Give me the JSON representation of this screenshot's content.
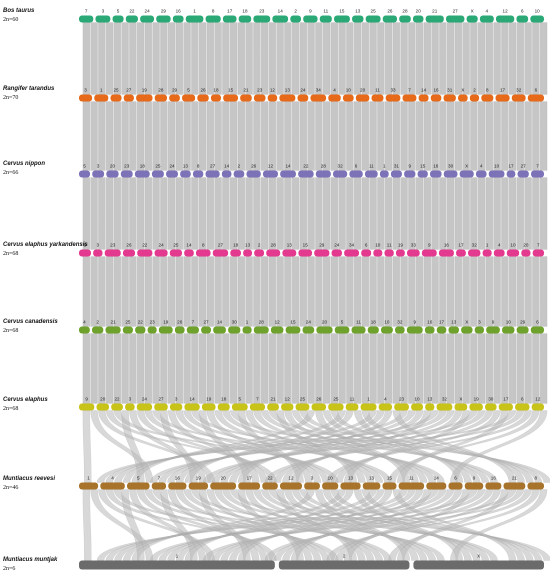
{
  "chart_data": {
    "type": "synteny",
    "band_color": "#b8b8b8",
    "species": [
      {
        "name": "Bos taurus",
        "karyotype": "2n=60",
        "color": "#2aa876",
        "chromosomes": [
          "7",
          "3",
          "5",
          "22",
          "24",
          "29",
          "16",
          "1",
          "8",
          "17",
          "18",
          "23",
          "14",
          "2",
          "9",
          "11",
          "15",
          "13",
          "25",
          "26",
          "28",
          "20",
          "21",
          "27",
          "X",
          "4",
          "12",
          "6",
          "10"
        ]
      },
      {
        "name": "Rangifer tarandus",
        "karyotype": "2n=70",
        "color": "#e66a1a",
        "chromosomes": [
          "3",
          "1",
          "25",
          "27",
          "19",
          "28",
          "29",
          "5",
          "26",
          "18",
          "15",
          "21",
          "23",
          "12",
          "13",
          "24",
          "34",
          "4",
          "10",
          "20",
          "11",
          "33",
          "7",
          "14",
          "16",
          "31",
          "X",
          "2",
          "8",
          "17",
          "32",
          "6"
        ]
      },
      {
        "name": "Cervus nippon",
        "karyotype": "2n=66",
        "color": "#7b72b8",
        "chromosomes": [
          "5",
          "3",
          "20",
          "23",
          "18",
          "25",
          "24",
          "13",
          "8",
          "27",
          "14",
          "2",
          "26",
          "12",
          "14",
          "22",
          "28",
          "32",
          "6",
          "11",
          "1",
          "31",
          "9",
          "15",
          "16",
          "30",
          "X",
          "4",
          "10",
          "17",
          "27",
          "7"
        ]
      },
      {
        "name": "Cervus elaphus yarkandensis",
        "karyotype": "2n=68",
        "color": "#e33a8f",
        "chromosomes": [
          "5",
          "3",
          "23",
          "26",
          "22",
          "24",
          "25",
          "14",
          "8",
          "27",
          "18",
          "13",
          "2",
          "28",
          "13",
          "15",
          "29",
          "24",
          "34",
          "6",
          "10",
          "11",
          "19",
          "33",
          "9",
          "16",
          "17",
          "32",
          "1",
          "4",
          "10",
          "20",
          "7"
        ]
      },
      {
        "name": "Cervus canadensis",
        "karyotype": "2n=68",
        "color": "#6ea22c",
        "chromosomes": [
          "4",
          "2",
          "21",
          "25",
          "22",
          "23",
          "19",
          "26",
          "7",
          "27",
          "14",
          "30",
          "1",
          "28",
          "12",
          "15",
          "24",
          "20",
          "5",
          "11",
          "18",
          "10",
          "32",
          "9",
          "16",
          "17",
          "13",
          "X",
          "3",
          "9",
          "10",
          "29",
          "6"
        ]
      },
      {
        "name": "Cervus elaphus",
        "karyotype": "2n=68",
        "color": "#c8c319",
        "chromosomes": [
          "9",
          "20",
          "22",
          "3",
          "24",
          "27",
          "3",
          "14",
          "19",
          "18",
          "5",
          "7",
          "21",
          "12",
          "25",
          "26",
          "25",
          "11",
          "1",
          "4",
          "23",
          "10",
          "13",
          "32",
          "X",
          "19",
          "30",
          "17",
          "6",
          "12"
        ]
      },
      {
        "name": "Muntiacus reevesi",
        "karyotype": "2n=46",
        "color": "#a8732a",
        "chromosomes": [
          "1",
          "4",
          "5",
          "7",
          "16",
          "19",
          "20",
          "17",
          "22",
          "12",
          "3",
          "10",
          "13",
          "13",
          "15",
          "11",
          "14",
          "6",
          "9",
          "16",
          "21",
          "8"
        ]
      },
      {
        "name": "Muntiacus muntjak",
        "karyotype": "2n=6",
        "color": "#6b6b6b",
        "chromosomes": [
          "1",
          "2",
          "X"
        ]
      }
    ]
  }
}
